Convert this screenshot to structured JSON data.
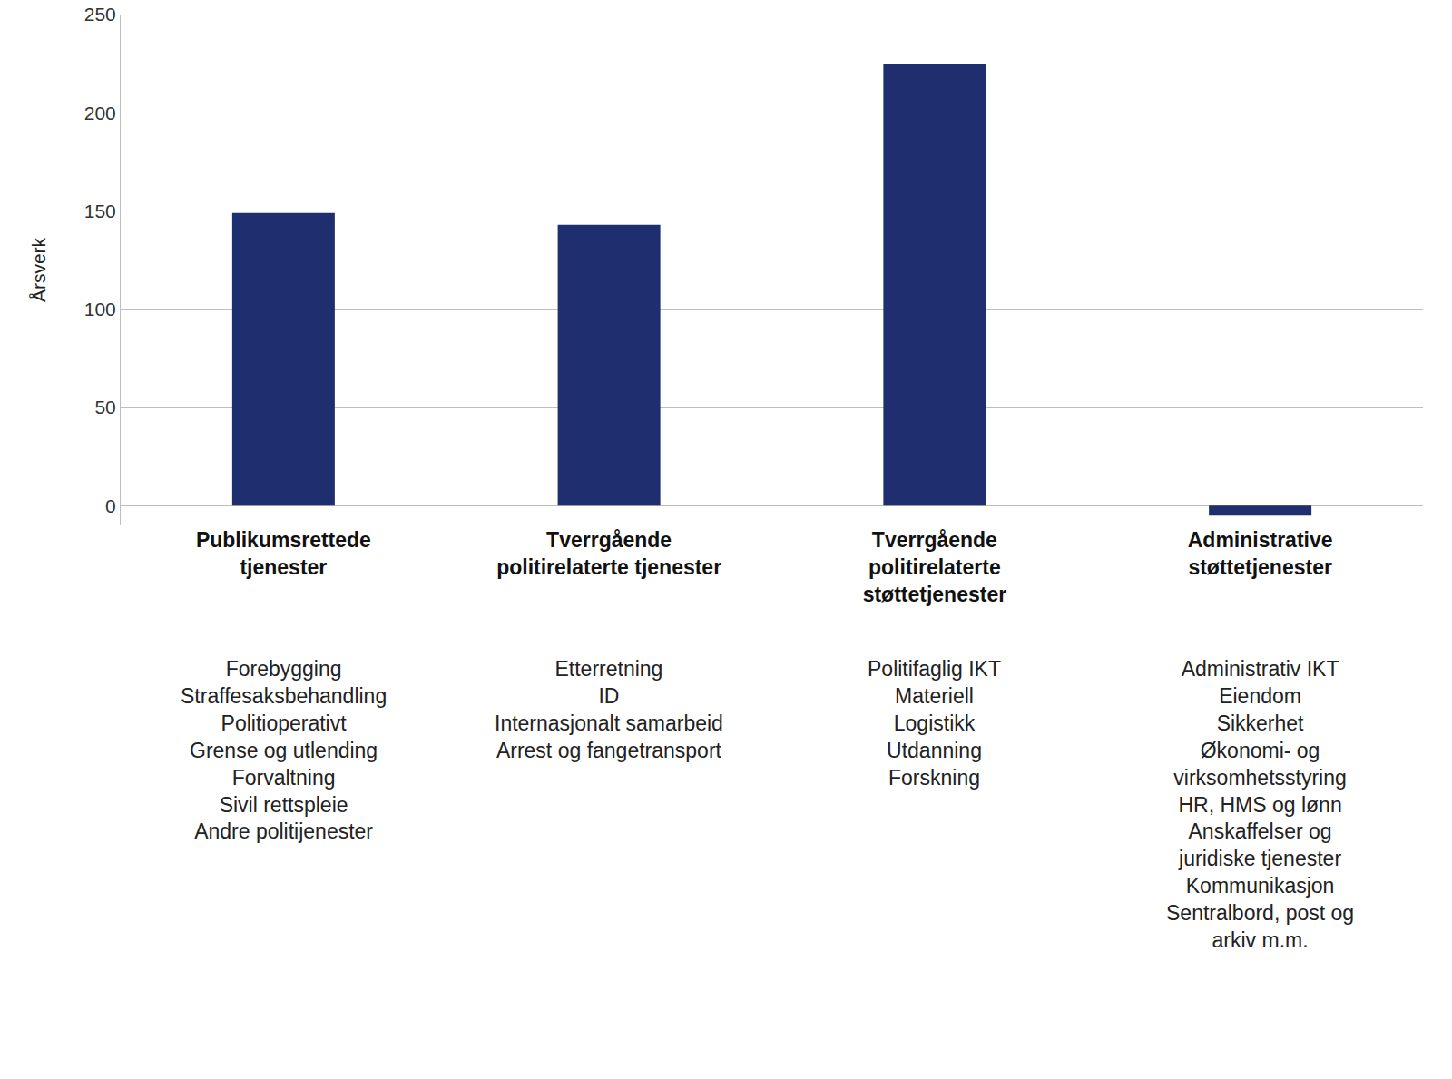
{
  "chart_data": {
    "type": "bar",
    "y_label": "Årsverk",
    "categories": [
      "Publikumsrettede tjenester",
      "Tverrgående politirelaterte tjenester",
      "Tverrgående politirelaterte støttetjenester",
      "Administrative støttetjenester"
    ],
    "values": [
      149,
      143,
      225,
      -5
    ],
    "color": "#1f2e6e",
    "category_items": [
      [
        "Forebygging",
        "Straffesaksbehandling",
        "Politioperativt",
        "Grense og utlending",
        "Forvaltning",
        "Sivil rettspleie",
        "Andre politijenester"
      ],
      [
        "Etterretning",
        "ID",
        "Internasjonalt samarbeid",
        "Arrest og fangetransport"
      ],
      [
        "Politifaglig IKT",
        "Materiell",
        "Logistikk",
        "Utdanning",
        "Forskning"
      ],
      [
        "Administrativ IKT",
        "Eiendom",
        "Sikkerhet",
        "Økonomi- og",
        "virksomhetsstyring",
        "HR, HMS og lønn",
        "Anskaffelser og",
        "juridiske tjenester",
        "Kommunikasjon",
        "Sentralbord, post og",
        "arkiv m.m."
      ]
    ],
    "ylim": [
      -10,
      250
    ],
    "yticks": [
      0,
      50,
      100,
      150,
      200,
      250
    ],
    "grid": true
  }
}
